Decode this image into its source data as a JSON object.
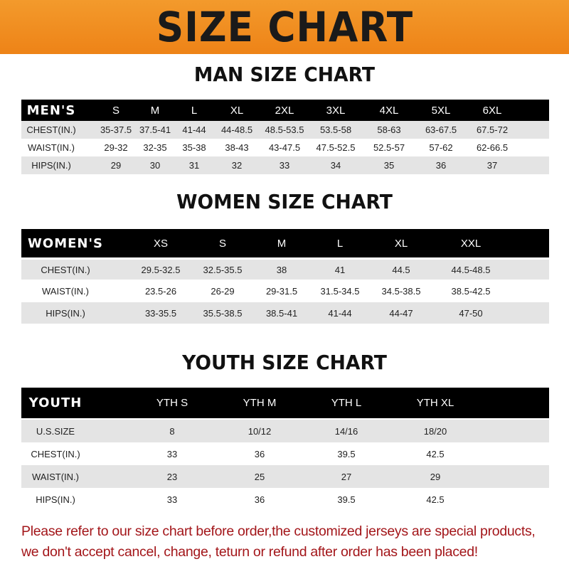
{
  "banner": {
    "title": "SIZE CHART",
    "color": "#ef8a20"
  },
  "men": {
    "title": "MAN SIZE CHART",
    "header": [
      "MEN'S",
      "S",
      "M",
      "L",
      "XL",
      "2XL",
      "3XL",
      "4XL",
      "5XL",
      "6XL"
    ],
    "rows": [
      [
        "CHEST(IN.)",
        "35-37.5",
        "37.5-41",
        "41-44",
        "44-48.5",
        "48.5-53.5",
        "53.5-58",
        "58-63",
        "63-67.5",
        "67.5-72"
      ],
      [
        "WAIST(IN.)",
        "29-32",
        "32-35",
        "35-38",
        "38-43",
        "43-47.5",
        "47.5-52.5",
        "52.5-57",
        "57-62",
        "62-66.5"
      ],
      [
        "HIPS(IN.)",
        "29",
        "30",
        "31",
        "32",
        "33",
        "34",
        "35",
        "36",
        "37"
      ]
    ]
  },
  "women": {
    "title": "WOMEN SIZE CHART",
    "header": [
      "WOMEN'S",
      "XS",
      "S",
      "M",
      "L",
      "XL",
      "XXL"
    ],
    "rows": [
      [
        "CHEST(IN.)",
        "29.5-32.5",
        "32.5-35.5",
        "38",
        "41",
        "44.5",
        "44.5-48.5"
      ],
      [
        "WAIST(IN.)",
        "23.5-26",
        "26-29",
        "29-31.5",
        "31.5-34.5",
        "34.5-38.5",
        "38.5-42.5"
      ],
      [
        "HIPS(IN.)",
        "33-35.5",
        "35.5-38.5",
        "38.5-41",
        "41-44",
        "44-47",
        "47-50"
      ]
    ]
  },
  "youth": {
    "title": "YOUTH SIZE CHART",
    "header": [
      "YOUTH",
      "YTH S",
      "YTH M",
      "YTH L",
      "YTH XL"
    ],
    "rows": [
      [
        "U.S.SIZE",
        "8",
        "10/12",
        "14/16",
        "18/20"
      ],
      [
        "CHEST(IN.)",
        "33",
        "36",
        "39.5",
        "42.5"
      ],
      [
        "WAIST(IN.)",
        "23",
        "25",
        "27",
        "29"
      ],
      [
        "HIPS(IN.)",
        "33",
        "36",
        "39.5",
        "42.5"
      ]
    ]
  },
  "note": {
    "line1": "Please refer to our size chart before order,the customized jerseys are special products,",
    "line2": "we don't accept cancel, change, teturn or refund after order has been placed!",
    "color": "#a3161a"
  }
}
